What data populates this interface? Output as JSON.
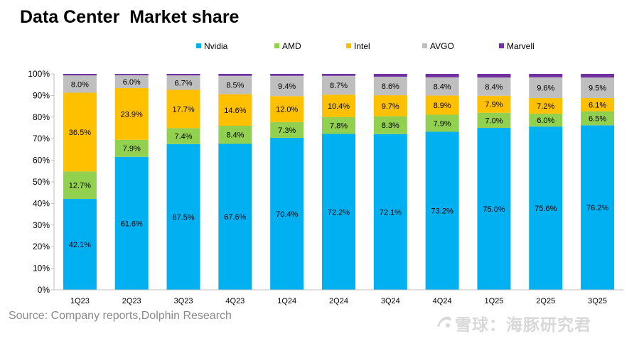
{
  "title": "Data Center  Market share",
  "source": "Source: Company reports,Dolphin Research",
  "watermark": "雪球：海豚研究君",
  "chart_data": {
    "type": "bar",
    "stacked": true,
    "title": "Data Center  Market share",
    "xlabel": "",
    "ylabel": "",
    "ylim": [
      0,
      100
    ],
    "yticks": [
      "0%",
      "10%",
      "20%",
      "30%",
      "40%",
      "50%",
      "60%",
      "70%",
      "80%",
      "90%",
      "100%"
    ],
    "grid": false,
    "legend_position": "top",
    "categories": [
      "1Q23",
      "2Q23",
      "3Q23",
      "4Q23",
      "1Q24",
      "2Q24",
      "3Q24",
      "4Q24",
      "1Q25",
      "2Q25",
      "3Q25"
    ],
    "series": [
      {
        "name": "Nvidia",
        "color": "#00b0f0",
        "values": [
          42.1,
          61.6,
          67.5,
          67.6,
          70.4,
          72.2,
          72.1,
          73.2,
          75.0,
          75.6,
          76.2
        ],
        "labels": [
          "42.1%",
          "61.6%",
          "67.5%",
          "67.6%",
          "70.4%",
          "72.2%",
          "72.1%",
          "73.2%",
          "75.0%",
          "75.6%",
          "76.2%"
        ]
      },
      {
        "name": "AMD",
        "color": "#92d050",
        "values": [
          12.7,
          7.9,
          7.4,
          8.4,
          7.3,
          7.8,
          8.3,
          7.9,
          7.0,
          6.0,
          6.5
        ],
        "labels": [
          "12.7%",
          "7.9%",
          "7.4%",
          "8.4%",
          "7.3%",
          "7.8%",
          "8.3%",
          "7.9%",
          "7.0%",
          "6.0%",
          "6.5%"
        ]
      },
      {
        "name": "Intel",
        "color": "#ffc000",
        "values": [
          36.5,
          23.9,
          17.7,
          14.6,
          12.0,
          10.4,
          9.7,
          8.9,
          7.9,
          7.2,
          6.1
        ],
        "labels": [
          "36.5%",
          "23.9%",
          "17.7%",
          "14.6%",
          "12.0%",
          "10.4%",
          "9.7%",
          "8.9%",
          "7.9%",
          "7.2%",
          "6.1%"
        ]
      },
      {
        "name": "AVGO",
        "color": "#bfbfbf",
        "values": [
          8.0,
          6.0,
          6.7,
          8.5,
          9.4,
          8.7,
          8.6,
          8.4,
          8.4,
          9.6,
          9.5
        ],
        "labels": [
          "8.0%",
          "6.0%",
          "6.7%",
          "8.5%",
          "9.4%",
          "8.7%",
          "8.6%",
          "8.4%",
          "8.4%",
          "9.6%",
          "9.5%"
        ]
      },
      {
        "name": "Marvell",
        "color": "#7030a0",
        "values": [
          0.7,
          0.6,
          0.7,
          0.9,
          0.9,
          0.9,
          1.3,
          1.6,
          1.7,
          1.6,
          1.7
        ],
        "labels": []
      }
    ]
  }
}
